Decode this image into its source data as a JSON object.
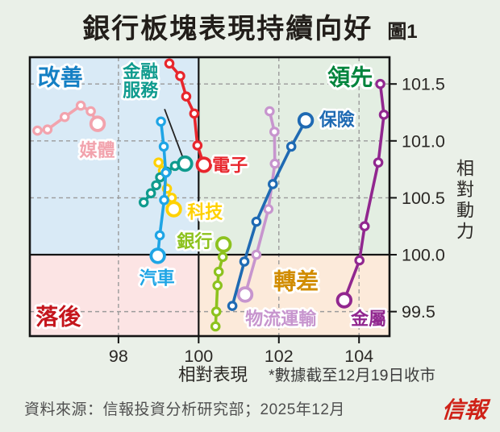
{
  "title": "銀行板塊表現持續向好",
  "figure_label": "圖1",
  "footnote": "*數據截至12月19日收市",
  "source": "資料來源：信報投資分析研究部；2025年12月",
  "logo_text": "信報",
  "chart_data": {
    "type": "scatter",
    "subtype": "relative-rotation-graph",
    "title": "銀行板塊表現持續向好",
    "xlabel": "相對表現",
    "ylabel": "相對動力",
    "xlim": [
      95.79,
      104.76
    ],
    "ylim": [
      99.285,
      101.735
    ],
    "center_x": 100,
    "center_y": 100,
    "grid": "dashed",
    "legend_position": "inline-labels",
    "xticks": [
      {
        "value": 98,
        "label": "98"
      },
      {
        "value": 100,
        "label": "100"
      },
      {
        "value": 102,
        "label": "102"
      },
      {
        "value": 104,
        "label": "104"
      }
    ],
    "yticks": [
      {
        "value": 99.5,
        "label": "99.5"
      },
      {
        "value": 100.0,
        "label": "100.0"
      },
      {
        "value": 100.5,
        "label": "100.5"
      },
      {
        "value": 101.0,
        "label": "101.0"
      },
      {
        "value": 101.5,
        "label": "101.5"
      }
    ],
    "quadrants": [
      {
        "label": "改善",
        "slug": "improving",
        "position": "top-left",
        "text_color": "#1580c4",
        "bg_color": "#d9eaf6",
        "label_at": [
          96.55,
          101.56
        ]
      },
      {
        "label": "領先",
        "slug": "leading",
        "position": "top-right",
        "text_color": "#00843d",
        "bg_color": "#e3eee2",
        "label_at": [
          103.78,
          101.56
        ]
      },
      {
        "label": "落後",
        "slug": "lagging",
        "position": "bottom-left",
        "text_color": "#c5161d",
        "bg_color": "#fce4e4",
        "label_at": [
          96.5,
          99.46
        ]
      },
      {
        "label": "轉差",
        "slug": "weakening",
        "position": "bottom-right",
        "text_color": "#d18c00",
        "bg_color": "#fceada",
        "label_at": [
          102.43,
          99.77
        ]
      }
    ],
    "series": [
      {
        "name": "媒體",
        "slug": "media",
        "color": "#f2a3ad",
        "points": [
          [
            95.98,
            101.09
          ],
          [
            96.23,
            101.1
          ],
          [
            96.66,
            101.21
          ],
          [
            97.06,
            101.31
          ],
          [
            97.31,
            101.26
          ],
          [
            97.48,
            101.15
          ]
        ],
        "label_at": [
          97.47,
          100.92
        ]
      },
      {
        "name": "科技",
        "slug": "technology",
        "color": "#ffd103",
        "points": [
          [
            99.0,
            100.81
          ],
          [
            99.11,
            100.74
          ],
          [
            99.21,
            100.58
          ],
          [
            99.33,
            100.5
          ],
          [
            99.38,
            100.4
          ]
        ],
        "label_at": [
          100.16,
          100.38
        ]
      },
      {
        "name": "金融服務",
        "slug": "financial-services",
        "color": "#0f9b8e",
        "points": [
          [
            98.63,
            100.46
          ],
          [
            98.81,
            100.54
          ],
          [
            98.94,
            100.61
          ],
          [
            99.04,
            100.68
          ],
          [
            99.2,
            100.73
          ],
          [
            99.41,
            100.78
          ],
          [
            99.66,
            100.8
          ]
        ],
        "label_at": [
          98.55,
          101.52
        ],
        "label_lines": [
          "金融",
          "服務"
        ],
        "callout": [
          [
            99.15,
            101.28
          ],
          [
            99.62,
            100.84
          ]
        ]
      },
      {
        "name": "汽車",
        "slug": "autos",
        "color": "#1fa5e5",
        "points": [
          [
            99.06,
            101.17
          ],
          [
            99.13,
            100.95
          ],
          [
            99.18,
            100.72
          ],
          [
            99.14,
            100.48
          ],
          [
            99.03,
            100.17
          ],
          [
            98.98,
            99.99
          ]
        ],
        "label_at": [
          98.96,
          99.8
        ]
      },
      {
        "name": "電子",
        "slug": "electronics",
        "color": "#e8262d",
        "points": [
          [
            99.27,
            101.68
          ],
          [
            99.54,
            101.57
          ],
          [
            99.69,
            101.39
          ],
          [
            99.89,
            101.24
          ],
          [
            99.97,
            100.96
          ],
          [
            100.13,
            100.79
          ]
        ],
        "label_at": [
          100.78,
          100.79
        ]
      },
      {
        "name": "銀行",
        "slug": "banks",
        "color": "#8dc21e",
        "points": [
          [
            100.42,
            99.37
          ],
          [
            100.44,
            99.5
          ],
          [
            100.47,
            99.73
          ],
          [
            100.5,
            99.85
          ],
          [
            100.6,
            99.98
          ],
          [
            100.62,
            100.09
          ]
        ],
        "label_at": [
          99.9,
          100.12
        ]
      },
      {
        "name": "物流運輸",
        "slug": "logistics-transport",
        "color": "#c795ce",
        "points": [
          [
            101.77,
            101.26
          ],
          [
            101.89,
            101.08
          ],
          [
            101.9,
            100.8
          ],
          [
            101.74,
            100.4
          ],
          [
            101.44,
            100.0
          ],
          [
            101.16,
            99.65
          ]
        ],
        "label_at": [
          102.05,
          99.44
        ]
      },
      {
        "name": "保險",
        "slug": "insurance",
        "color": "#1f6ab3",
        "points": [
          [
            100.84,
            99.55
          ],
          [
            101.14,
            99.94
          ],
          [
            101.44,
            100.29
          ],
          [
            101.85,
            100.62
          ],
          [
            102.31,
            100.95
          ],
          [
            102.67,
            101.18
          ]
        ],
        "label_at": [
          103.45,
          101.19
        ]
      },
      {
        "name": "金屬",
        "slug": "metals",
        "color": "#91278f",
        "points": [
          [
            104.53,
            101.5
          ],
          [
            104.62,
            101.23
          ],
          [
            104.48,
            100.81
          ],
          [
            104.14,
            100.25
          ],
          [
            104.01,
            99.95
          ],
          [
            103.63,
            99.6
          ]
        ],
        "label_at": [
          104.24,
          99.44
        ]
      }
    ]
  }
}
